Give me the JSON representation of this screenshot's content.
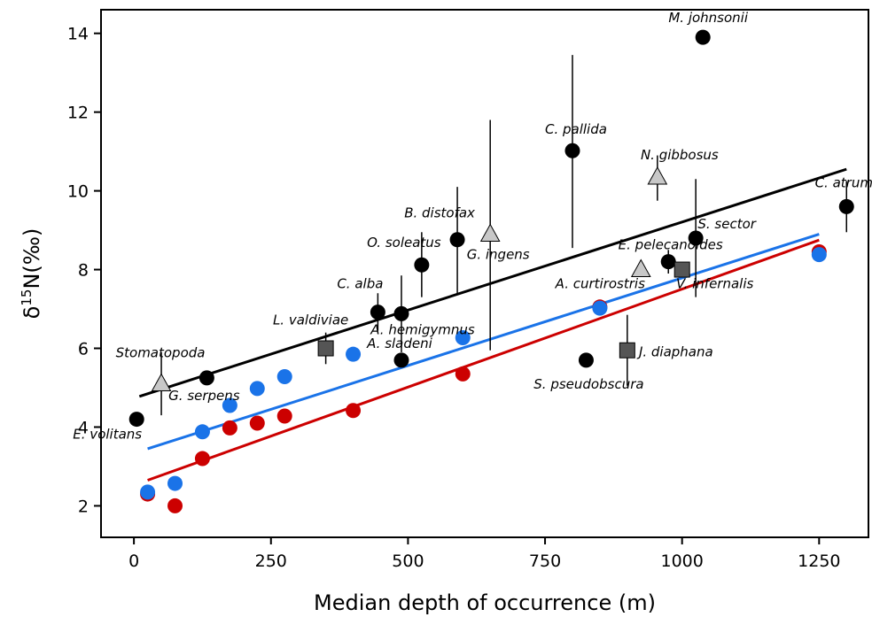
{
  "chart_data": {
    "type": "scatter",
    "xlabel": "Median depth of occurrence (m)",
    "ylabel": {
      "delta": "δ",
      "sup": "15",
      "rest": "N(‰)"
    },
    "xlim": [
      -60,
      1340
    ],
    "ylim": [
      1.2,
      14.6
    ],
    "xticks": [
      0,
      250,
      500,
      750,
      1000,
      1250
    ],
    "yticks": [
      2,
      4,
      6,
      8,
      10,
      12,
      14
    ],
    "grid": false,
    "colors": {
      "black": "#000000",
      "blue": "#1a73e8",
      "red": "#cc0000",
      "gray_triangle": "#c8c8c8",
      "gray_square": "#555555"
    },
    "series": [
      {
        "marker": "circle",
        "color": "#000000",
        "points": [
          {
            "x": 5,
            "y": 4.2,
            "label": "E. volitans"
          },
          {
            "x": 133,
            "y": 5.25,
            "label": "G. serpens"
          },
          {
            "x": 445,
            "y": 6.92,
            "label": "C. alba",
            "err": [
              6.45,
              7.4
            ]
          },
          {
            "x": 488,
            "y": 6.88,
            "label": "A. hemigymnus",
            "err": [
              5.9,
              7.85
            ]
          },
          {
            "x": 488,
            "y": 5.7,
            "label": "A. sladeni"
          },
          {
            "x": 525,
            "y": 8.12,
            "label": "O. soleatus",
            "err": [
              7.3,
              8.95
            ]
          },
          {
            "x": 590,
            "y": 8.76,
            "label": "B. distofax",
            "err": [
              7.4,
              10.1
            ]
          },
          {
            "x": 800,
            "y": 11.02,
            "label": "C. pallida",
            "err": [
              8.55,
              13.45
            ]
          },
          {
            "x": 825,
            "y": 5.7,
            "label": "S. pseudobscura"
          },
          {
            "x": 975,
            "y": 8.2,
            "err": [
              7.9,
              8.5
            ]
          },
          {
            "x": 1025,
            "y": 8.8,
            "label": "S. sector",
            "err": [
              7.3,
              10.3
            ]
          },
          {
            "x": 1038,
            "y": 13.9,
            "label": "M. johnsonii"
          },
          {
            "x": 1300,
            "y": 9.6,
            "label": "C. atrum",
            "err": [
              8.95,
              10.25
            ]
          }
        ]
      },
      {
        "marker": "triangle",
        "color": "#c8c8c8",
        "points": [
          {
            "x": 50,
            "y": 5.1,
            "label": "Stomatopoda",
            "err": [
              4.3,
              5.9
            ]
          },
          {
            "x": 650,
            "y": 8.9,
            "label": "G. ingens",
            "err": [
              5.95,
              11.8
            ]
          },
          {
            "x": 925,
            "y": 8.0,
            "label": "A. curtirostris"
          },
          {
            "x": 955,
            "y": 10.35,
            "label": "N. gibbosus",
            "err": [
              9.75,
              10.9
            ]
          }
        ]
      },
      {
        "marker": "square",
        "color": "#555555",
        "points": [
          {
            "x": 350,
            "y": 6.0,
            "label": "L. valdiviae",
            "err": [
              5.6,
              6.4
            ]
          },
          {
            "x": 900,
            "y": 5.95,
            "label": "J. diaphana",
            "err": [
              5.05,
              6.85
            ]
          },
          {
            "x": 1000,
            "y": 8.0,
            "label": "V. infernalis"
          }
        ]
      },
      {
        "marker": "circle",
        "color": "#cc0000",
        "points": [
          {
            "x": 25,
            "y": 2.3
          },
          {
            "x": 75,
            "y": 2.0
          },
          {
            "x": 125,
            "y": 3.2
          },
          {
            "x": 175,
            "y": 3.98
          },
          {
            "x": 225,
            "y": 4.1
          },
          {
            "x": 275,
            "y": 4.28
          },
          {
            "x": 400,
            "y": 4.42
          },
          {
            "x": 600,
            "y": 5.35
          },
          {
            "x": 850,
            "y": 7.05
          },
          {
            "x": 1250,
            "y": 8.45
          }
        ]
      },
      {
        "marker": "circle",
        "color": "#1a73e8",
        "points": [
          {
            "x": 25,
            "y": 2.35
          },
          {
            "x": 75,
            "y": 2.57
          },
          {
            "x": 125,
            "y": 3.88
          },
          {
            "x": 175,
            "y": 4.55
          },
          {
            "x": 225,
            "y": 4.98
          },
          {
            "x": 275,
            "y": 5.28
          },
          {
            "x": 400,
            "y": 5.85
          },
          {
            "x": 600,
            "y": 6.27
          },
          {
            "x": 850,
            "y": 7.02
          },
          {
            "x": 1250,
            "y": 8.38
          }
        ]
      }
    ],
    "extra_labels": [
      {
        "text": "E. pelecanoides",
        "x": 1000,
        "y": 8.2
      }
    ],
    "fit_lines": [
      {
        "color": "#000000",
        "x": [
          10,
          1300
        ],
        "y": [
          4.78,
          10.55
        ]
      },
      {
        "color": "#1a73e8",
        "x": [
          25,
          1250
        ],
        "y": [
          3.45,
          8.9
        ]
      },
      {
        "color": "#cc0000",
        "x": [
          25,
          1250
        ],
        "y": [
          2.65,
          8.75
        ]
      }
    ]
  }
}
